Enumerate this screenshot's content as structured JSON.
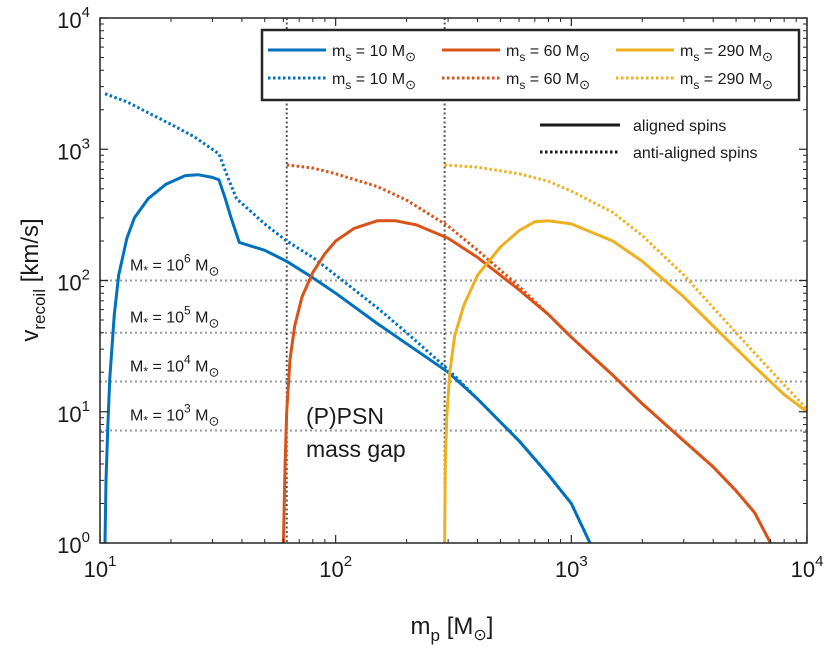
{
  "chart_data": {
    "type": "line",
    "xscale": "log",
    "yscale": "log",
    "xlim": [
      10,
      10000
    ],
    "ylim": [
      1,
      10000
    ],
    "xlabel": {
      "main": "m",
      "sub": "p",
      "unit": "[M",
      "sun": "⊙",
      "close": "]"
    },
    "ylabel": {
      "main": "v",
      "sub": "recoil",
      "unit": "[km/s]"
    },
    "x_ticks": [
      {
        "base": "10",
        "exp": "1",
        "value": 10
      },
      {
        "base": "10",
        "exp": "2",
        "value": 100
      },
      {
        "base": "10",
        "exp": "3",
        "value": 1000
      },
      {
        "base": "10",
        "exp": "4",
        "value": 10000
      }
    ],
    "y_ticks": [
      {
        "base": "10",
        "exp": "0",
        "value": 1
      },
      {
        "base": "10",
        "exp": "1",
        "value": 10
      },
      {
        "base": "10",
        "exp": "2",
        "value": 100
      },
      {
        "base": "10",
        "exp": "3",
        "value": 1000
      },
      {
        "base": "10",
        "exp": "4",
        "value": 10000
      }
    ],
    "grid": false,
    "colors": {
      "ms10": "#0072BD",
      "ms60": "#D95319",
      "ms290": "#EDB120",
      "ref": "#9a9a9a",
      "gap": "#555555"
    },
    "series": [
      {
        "name": "m_s = 10 M_sun",
        "style": "solid",
        "color": "#0072BD",
        "points": [
          [
            10.5,
            1
          ],
          [
            10.6,
            3
          ],
          [
            10.8,
            8
          ],
          [
            11,
            18
          ],
          [
            11.5,
            55
          ],
          [
            12,
            110
          ],
          [
            13,
            210
          ],
          [
            14,
            300
          ],
          [
            16,
            420
          ],
          [
            19,
            540
          ],
          [
            23,
            630
          ],
          [
            26,
            640
          ],
          [
            30,
            610
          ],
          [
            32,
            585
          ],
          [
            34,
            420
          ],
          [
            36,
            300
          ],
          [
            38,
            225
          ],
          [
            39,
            195
          ],
          [
            50,
            170
          ],
          [
            62,
            140
          ],
          [
            80,
            105
          ],
          [
            100,
            80
          ],
          [
            150,
            47
          ],
          [
            200,
            33
          ],
          [
            300,
            20
          ],
          [
            400,
            12.5
          ],
          [
            600,
            6
          ],
          [
            800,
            3.3
          ],
          [
            1000,
            2
          ],
          [
            1200,
            1
          ]
        ]
      },
      {
        "name": "m_s = 10 M_sun",
        "style": "dotted",
        "color": "#0072BD",
        "points": [
          [
            10.5,
            2650
          ],
          [
            13,
            2300
          ],
          [
            16,
            1900
          ],
          [
            20,
            1550
          ],
          [
            25,
            1250
          ],
          [
            30,
            1000
          ],
          [
            32,
            920
          ],
          [
            35,
            600
          ],
          [
            38,
            420
          ],
          [
            50,
            270
          ],
          [
            62,
            200
          ],
          [
            80,
            150
          ],
          [
            100,
            110
          ],
          [
            150,
            62
          ],
          [
            200,
            40
          ],
          [
            300,
            21
          ],
          [
            400,
            12.5
          ],
          [
            600,
            6
          ],
          [
            800,
            3.3
          ],
          [
            1000,
            2
          ],
          [
            1200,
            1
          ]
        ]
      },
      {
        "name": "m_s = 60 M_sun",
        "style": "solid",
        "color": "#D95319",
        "points": [
          [
            60,
            1
          ],
          [
            61,
            4
          ],
          [
            62,
            10
          ],
          [
            64,
            25
          ],
          [
            67,
            45
          ],
          [
            72,
            75
          ],
          [
            80,
            115
          ],
          [
            90,
            160
          ],
          [
            100,
            200
          ],
          [
            120,
            250
          ],
          [
            150,
            285
          ],
          [
            180,
            285
          ],
          [
            220,
            265
          ],
          [
            300,
            210
          ],
          [
            400,
            150
          ],
          [
            600,
            85
          ],
          [
            800,
            55
          ],
          [
            1000,
            37
          ],
          [
            1500,
            19
          ],
          [
            2000,
            11.5
          ],
          [
            3000,
            6
          ],
          [
            4000,
            3.8
          ],
          [
            5000,
            2.5
          ],
          [
            6000,
            1.7
          ],
          [
            7000,
            1
          ]
        ]
      },
      {
        "name": "m_s = 60 M_sun",
        "style": "dotted",
        "color": "#D95319",
        "points": [
          [
            62,
            760
          ],
          [
            80,
            720
          ],
          [
            100,
            650
          ],
          [
            150,
            520
          ],
          [
            200,
            410
          ],
          [
            300,
            260
          ],
          [
            400,
            170
          ],
          [
            600,
            90
          ],
          [
            800,
            55
          ],
          [
            1000,
            37
          ],
          [
            1500,
            19
          ],
          [
            2000,
            11.5
          ],
          [
            3000,
            6
          ],
          [
            4000,
            3.8
          ],
          [
            5000,
            2.5
          ],
          [
            6000,
            1.7
          ],
          [
            7000,
            1
          ]
        ]
      },
      {
        "name": "m_s = 290 M_sun",
        "style": "solid",
        "color": "#EDB120",
        "points": [
          [
            290,
            1
          ],
          [
            292,
            4
          ],
          [
            296,
            9
          ],
          [
            305,
            20
          ],
          [
            320,
            38
          ],
          [
            350,
            65
          ],
          [
            400,
            110
          ],
          [
            500,
            180
          ],
          [
            600,
            240
          ],
          [
            700,
            280
          ],
          [
            800,
            285
          ],
          [
            1000,
            270
          ],
          [
            1500,
            200
          ],
          [
            2000,
            140
          ],
          [
            3000,
            75
          ],
          [
            4000,
            45
          ],
          [
            6000,
            22
          ],
          [
            8000,
            13.5
          ],
          [
            10000,
            10
          ]
        ]
      },
      {
        "name": "m_s = 290 M_sun",
        "style": "dotted",
        "color": "#EDB120",
        "points": [
          [
            290,
            760
          ],
          [
            400,
            730
          ],
          [
            600,
            650
          ],
          [
            800,
            570
          ],
          [
            1000,
            480
          ],
          [
            1500,
            330
          ],
          [
            2000,
            220
          ],
          [
            3000,
            110
          ],
          [
            4000,
            62
          ],
          [
            6000,
            28
          ],
          [
            8000,
            16
          ],
          [
            10000,
            10.5
          ]
        ]
      }
    ],
    "reference_lines": [
      {
        "y": 100,
        "label_pre": "M",
        "star": "*",
        "mid": " = 10",
        "exp": "6",
        "post": " M",
        "sun": "⊙"
      },
      {
        "y": 40,
        "label_pre": "M",
        "star": "*",
        "mid": " = 10",
        "exp": "5",
        "post": " M",
        "sun": "⊙"
      },
      {
        "y": 17,
        "label_pre": "M",
        "star": "*",
        "mid": " = 10",
        "exp": "4",
        "post": " M",
        "sun": "⊙"
      },
      {
        "y": 7.2,
        "label_pre": "M",
        "star": "*",
        "mid": " = 10",
        "exp": "3",
        "post": " M",
        "sun": "⊙"
      }
    ],
    "vertical_lines": [
      {
        "x": 62
      },
      {
        "x": 290
      }
    ],
    "gap_label": {
      "line1": "(P)PSN",
      "line2": "mass gap"
    },
    "legend": {
      "placement": "top-right",
      "entries": [
        {
          "pre": "m",
          "sub": "s",
          "val": " = 10 M",
          "sun": "⊙",
          "style": "solid",
          "color": "#0072BD"
        },
        {
          "pre": "m",
          "sub": "s",
          "val": " = 60 M",
          "sun": "⊙",
          "style": "solid",
          "color": "#D95319"
        },
        {
          "pre": "m",
          "sub": "s",
          "val": " = 290 M",
          "sun": "⊙",
          "style": "solid",
          "color": "#EDB120"
        },
        {
          "pre": "m",
          "sub": "s",
          "val": " = 10 M",
          "sun": "⊙",
          "style": "dotted",
          "color": "#0072BD"
        },
        {
          "pre": "m",
          "sub": "s",
          "val": " = 60 M",
          "sun": "⊙",
          "style": "dotted",
          "color": "#D95319"
        },
        {
          "pre": "m",
          "sub": "s",
          "val": " = 290 M",
          "sun": "⊙",
          "style": "dotted",
          "color": "#EDB120"
        }
      ]
    },
    "style_legend": [
      {
        "label": "aligned spins",
        "style": "solid"
      },
      {
        "label": "anti-aligned spins",
        "style": "dotted"
      }
    ]
  }
}
